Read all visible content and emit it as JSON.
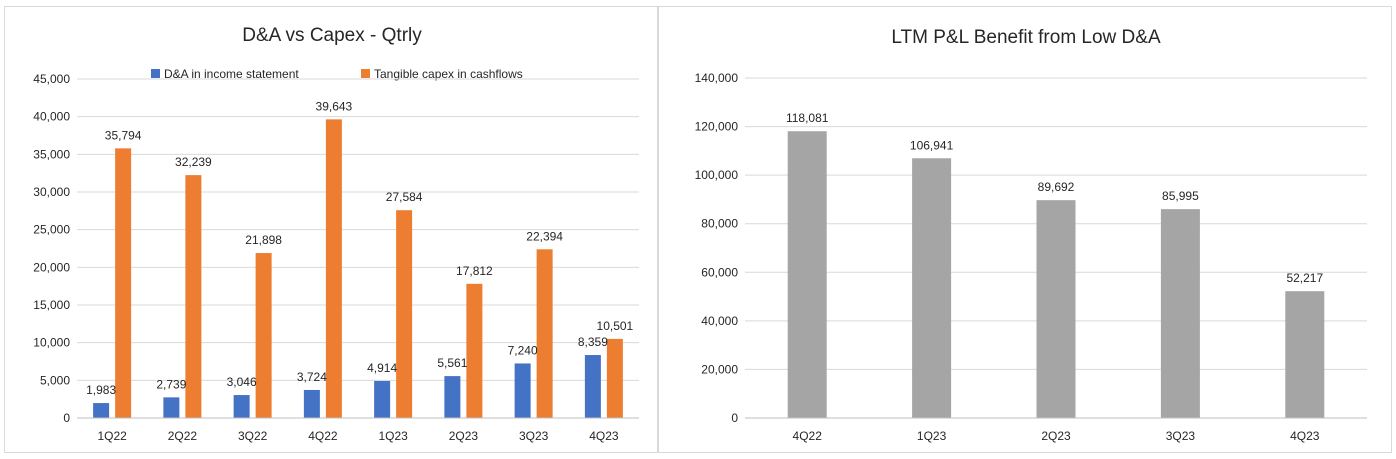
{
  "chart_data": [
    {
      "type": "bar",
      "title": "D&A vs Capex - Qtrly",
      "xlabel": "",
      "ylabel": "",
      "categories": [
        "1Q22",
        "2Q22",
        "3Q22",
        "4Q22",
        "1Q23",
        "2Q23",
        "3Q23",
        "4Q23"
      ],
      "series": [
        {
          "name": "D&A in income statement",
          "color": "#4472C4",
          "values": [
            1983,
            2739,
            3046,
            3724,
            4914,
            5561,
            7240,
            8359
          ],
          "labels": [
            "1,983",
            "2,739",
            "3,046",
            "3,724",
            "4,914",
            "5,561",
            "7,240",
            "8,359"
          ]
        },
        {
          "name": "Tangible capex in cashflows",
          "color": "#ED7D31",
          "values": [
            35794,
            32239,
            21898,
            39643,
            27584,
            17812,
            22394,
            10501
          ],
          "labels": [
            "35,794",
            "32,239",
            "21,898",
            "39,643",
            "27,584",
            "17,812",
            "22,394",
            "10,501"
          ]
        }
      ],
      "ylim": [
        0,
        45000
      ],
      "yticks": [
        0,
        5000,
        10000,
        15000,
        20000,
        25000,
        30000,
        35000,
        40000,
        45000
      ],
      "ytick_labels": [
        "0",
        "5,000",
        "10,000",
        "15,000",
        "20,000",
        "25,000",
        "30,000",
        "35,000",
        "40,000",
        "45,000"
      ],
      "grid": true,
      "legend": "top"
    },
    {
      "type": "bar",
      "title": "LTM P&L Benefit from Low D&A",
      "xlabel": "",
      "ylabel": "",
      "categories": [
        "4Q22",
        "1Q23",
        "2Q23",
        "3Q23",
        "4Q23"
      ],
      "series": [
        {
          "name": "LTM P&L Benefit",
          "color": "#A5A5A5",
          "values": [
            118081,
            106941,
            89692,
            85995,
            52217
          ],
          "labels": [
            "118,081",
            "106,941",
            "89,692",
            "85,995",
            "52,217"
          ]
        }
      ],
      "ylim": [
        0,
        140000
      ],
      "yticks": [
        0,
        20000,
        40000,
        60000,
        80000,
        100000,
        120000,
        140000
      ],
      "ytick_labels": [
        "0",
        "20,000",
        "40,000",
        "60,000",
        "80,000",
        "100,000",
        "120,000",
        "140,000"
      ],
      "grid": true,
      "legend": "none"
    }
  ]
}
